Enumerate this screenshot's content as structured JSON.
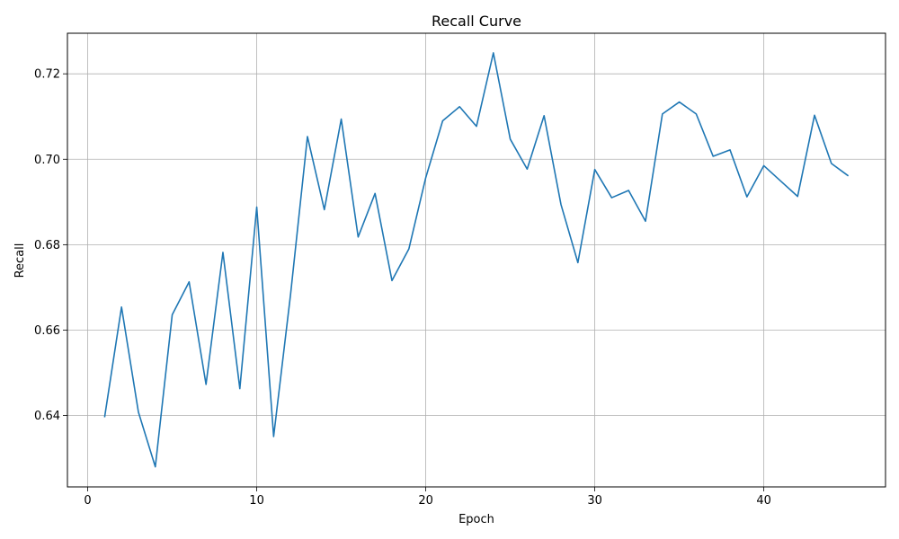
{
  "chart_data": {
    "type": "line",
    "title": "Recall Curve",
    "xlabel": "Epoch",
    "ylabel": "Recall",
    "xlim": [
      -1.2,
      47.2
    ],
    "ylim": [
      0.6233,
      0.7295
    ],
    "xticks": [
      0,
      10,
      20,
      30,
      40
    ],
    "yticks": [
      0.64,
      0.66,
      0.68,
      0.7,
      0.72
    ],
    "ytick_labels": [
      "0.64",
      "0.66",
      "0.68",
      "0.70",
      "0.72"
    ],
    "grid": true,
    "line_color": "#1f77b4",
    "series": [
      {
        "x": [
          1,
          2,
          3,
          4,
          5,
          6,
          7,
          8,
          9,
          10,
          11,
          12,
          13,
          14,
          15,
          16,
          17,
          18,
          19,
          20,
          21,
          22,
          23,
          24,
          25,
          26,
          27,
          28,
          29,
          30,
          31,
          32,
          33,
          34,
          35,
          36,
          37,
          38,
          39,
          40,
          41,
          42,
          43,
          44,
          45
        ],
        "values": [
          0.6396,
          0.6654,
          0.6408,
          0.628,
          0.6636,
          0.6713,
          0.6473,
          0.6782,
          0.6463,
          0.6888,
          0.6351,
          0.6683,
          0.7053,
          0.6882,
          0.7094,
          0.6818,
          0.692,
          0.6716,
          0.679,
          0.6957,
          0.709,
          0.7123,
          0.7077,
          0.7249,
          0.7047,
          0.6977,
          0.7102,
          0.6894,
          0.6758,
          0.6976,
          0.691,
          0.6927,
          0.6855,
          0.7106,
          0.7134,
          0.7106,
          0.7007,
          0.7022,
          0.6912,
          0.6985,
          0.6949,
          0.6913,
          0.7103,
          0.699,
          0.6961
        ]
      }
    ]
  }
}
